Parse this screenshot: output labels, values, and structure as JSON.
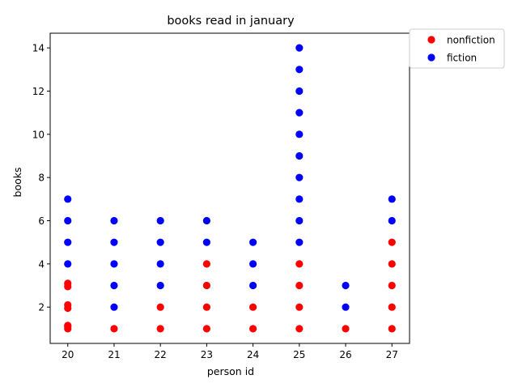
{
  "chart_data": {
    "type": "scatter",
    "title": "books read in january",
    "xlabel": "person id",
    "ylabel": "books",
    "xlim": [
      19.62,
      27.38
    ],
    "ylim": [
      0.32,
      14.68
    ],
    "xticks": [
      20,
      21,
      22,
      23,
      24,
      25,
      26,
      27
    ],
    "yticks": [
      2,
      4,
      6,
      8,
      10,
      12,
      14
    ],
    "grid": false,
    "legend_position": "upper-right-outside",
    "series": [
      {
        "name": "nonfiction",
        "color": "#ff0000",
        "points": [
          [
            20,
            1.0
          ],
          [
            20,
            1.1
          ],
          [
            20,
            1.15
          ],
          [
            20,
            1.95
          ],
          [
            20,
            2.1
          ],
          [
            20,
            2.95
          ],
          [
            20,
            3.1
          ],
          [
            21,
            1
          ],
          [
            22,
            1
          ],
          [
            22,
            2
          ],
          [
            23,
            1
          ],
          [
            23,
            2
          ],
          [
            23,
            3
          ],
          [
            23,
            4
          ],
          [
            24,
            1
          ],
          [
            24,
            2
          ],
          [
            25,
            1
          ],
          [
            25,
            2
          ],
          [
            25,
            3
          ],
          [
            25,
            4
          ],
          [
            26,
            1
          ],
          [
            27,
            1
          ],
          [
            27,
            2
          ],
          [
            27,
            3
          ],
          [
            27,
            4
          ],
          [
            27,
            5
          ]
        ]
      },
      {
        "name": "fiction",
        "color": "#0000ff",
        "points": [
          [
            20,
            4
          ],
          [
            20,
            5
          ],
          [
            20,
            6
          ],
          [
            20,
            7
          ],
          [
            21,
            2
          ],
          [
            21,
            3
          ],
          [
            21,
            4
          ],
          [
            21,
            5
          ],
          [
            21,
            6
          ],
          [
            22,
            3
          ],
          [
            22,
            4
          ],
          [
            22,
            5
          ],
          [
            22,
            6
          ],
          [
            23,
            5
          ],
          [
            23,
            6
          ],
          [
            24,
            3
          ],
          [
            24,
            4
          ],
          [
            24,
            5
          ],
          [
            25,
            5
          ],
          [
            25,
            6
          ],
          [
            25,
            7
          ],
          [
            25,
            8
          ],
          [
            25,
            9
          ],
          [
            25,
            10
          ],
          [
            25,
            11
          ],
          [
            25,
            12
          ],
          [
            25,
            13
          ],
          [
            25,
            14
          ],
          [
            26,
            2
          ],
          [
            26,
            3
          ],
          [
            27,
            6
          ],
          [
            27,
            7
          ]
        ]
      }
    ]
  }
}
